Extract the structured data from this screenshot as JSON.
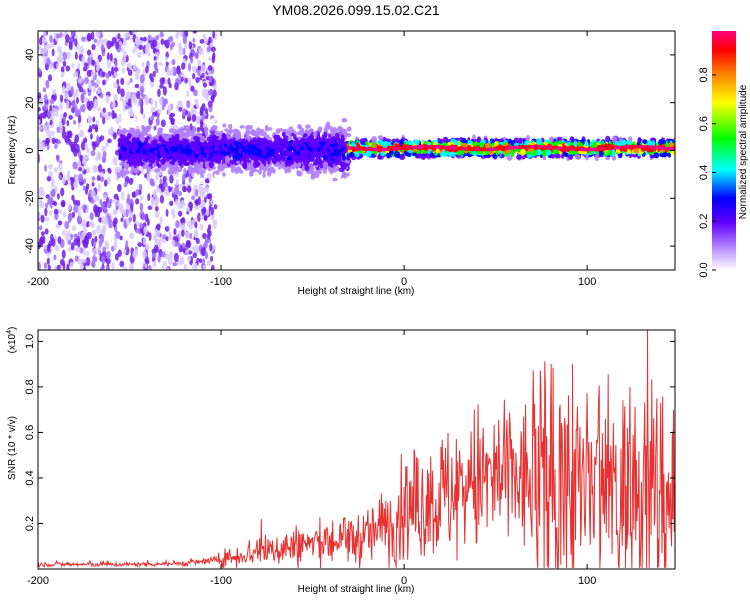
{
  "title": "YM08.2026.099.15.02.C21",
  "chart_data": [
    {
      "type": "heatmap",
      "name": "spectrogram",
      "xlabel": "Height of straight line (km)",
      "ylabel": "Frequency (Hz)",
      "xlim": [
        -200,
        148
      ],
      "ylim": [
        -50,
        50
      ],
      "xticks": [
        -200,
        -100,
        0,
        100
      ],
      "xtick_labels": [
        "-200",
        "-100",
        "0",
        "100"
      ],
      "yticks": [
        -40,
        -20,
        0,
        20,
        40
      ],
      "ytick_labels": [
        "-40",
        "-20",
        "0",
        "20",
        "40"
      ],
      "colorbar": {
        "label": "Normalized spectral amplitude",
        "range": [
          0,
          0.98
        ],
        "ticks": [
          0.0,
          0.2,
          0.4,
          0.6,
          0.8
        ],
        "tick_labels": [
          "0.0",
          "0.2",
          "0.4",
          "0.6",
          "0.8"
        ],
        "colors": [
          "#ffffff",
          "#b080ff",
          "#6000ff",
          "#0000ff",
          "#00ffff",
          "#00ff00",
          "#ffff00",
          "#ff8000",
          "#ff0000",
          "#ff0080"
        ]
      },
      "regions": [
        {
          "x_range": [
            -200,
            -103
          ],
          "freq_range": [
            -50,
            50
          ],
          "amplitude": 0.2,
          "note": "broadband scattered noise"
        },
        {
          "x_range": [
            -155,
            -30
          ],
          "freq_center": 0,
          "freq_halfwidth": 8,
          "amplitude": 0.35
        },
        {
          "x_range": [
            -30,
            148
          ],
          "freq_center": 1,
          "freq_halfwidth": 3,
          "amplitude": 0.95
        }
      ]
    },
    {
      "type": "line",
      "name": "snr",
      "xlabel": "Height of straight line (km)",
      "ylabel": "SNR (10 * v/v)",
      "y_multiplier": "(x10",
      "y_multiplier_exp": "4",
      "xlim": [
        -200,
        148
      ],
      "ylim": [
        0,
        1.05
      ],
      "xticks": [
        -200,
        -100,
        0,
        100
      ],
      "xtick_labels": [
        "-200",
        "-100",
        "0",
        "100"
      ],
      "yticks": [
        0.2,
        0.4,
        0.6,
        0.8,
        1.0
      ],
      "ytick_labels": [
        "0.2",
        "0.4",
        "0.6",
        "0.8",
        "1.0"
      ],
      "color": "#e83030",
      "series": [
        {
          "name": "SNR",
          "x": [
            -200,
            -150,
            -120,
            -100,
            -90,
            -80,
            -60,
            -40,
            -20,
            0,
            20,
            40,
            55,
            70,
            90,
            100,
            120,
            133,
            148
          ],
          "values": [
            0.02,
            0.02,
            0.025,
            0.04,
            0.06,
            0.08,
            0.1,
            0.12,
            0.14,
            0.25,
            0.32,
            0.38,
            0.4,
            0.38,
            0.35,
            0.33,
            0.32,
            0.34,
            0.33
          ],
          "peaks": [
            [
              -78,
              0.22
            ],
            [
              -50,
              0.14
            ],
            [
              -10,
              0.18
            ],
            [
              -10,
              0.3
            ],
            [
              0,
              0.36
            ],
            [
              6,
              0.38
            ],
            [
              35,
              0.48
            ],
            [
              60,
              0.47
            ],
            [
              80,
              0.68
            ],
            [
              92,
              0.9
            ],
            [
              110,
              0.66
            ],
            [
              122,
              0.62
            ],
            [
              133,
              1.05
            ],
            [
              140,
              0.6
            ],
            [
              147,
              0.55
            ]
          ]
        }
      ]
    }
  ]
}
